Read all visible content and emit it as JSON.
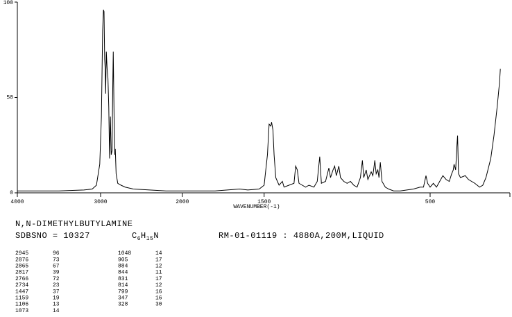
{
  "chart_data": {
    "type": "line",
    "x_label": "WAVENUMBER(-1)",
    "xlim": [
      4000,
      0
    ],
    "ylim": [
      0,
      100
    ],
    "xticks": [
      4000,
      3000,
      2000,
      1500,
      500
    ],
    "yticks": [
      0,
      50,
      100
    ],
    "color": "#000000",
    "x": [
      4000,
      3500,
      3200,
      3100,
      3050,
      3010,
      2990,
      2975,
      2965,
      2958,
      2950,
      2945,
      2938,
      2930,
      2920,
      2910,
      2900,
      2890,
      2880,
      2870,
      2860,
      2850,
      2845,
      2835,
      2826,
      2820,
      2810,
      2790,
      2750,
      2700,
      2600,
      2400,
      2200,
      2000,
      1800,
      1650,
      1600,
      1530,
      1500,
      1480,
      1470,
      1460,
      1455,
      1447,
      1440,
      1430,
      1420,
      1410,
      1390,
      1380,
      1320,
      1310,
      1300,
      1290,
      1270,
      1250,
      1230,
      1200,
      1180,
      1165,
      1155,
      1130,
      1110,
      1100,
      1085,
      1075,
      1065,
      1050,
      1040,
      1020,
      1000,
      980,
      960,
      940,
      920,
      908,
      900,
      885,
      875,
      855,
      845,
      833,
      825,
      815,
      808,
      800,
      790,
      770,
      750,
      720,
      680,
      600,
      560,
      540,
      525,
      515,
      500,
      480,
      460,
      440,
      420,
      400,
      380,
      365,
      355,
      350,
      340,
      332,
      328,
      322,
      310,
      280,
      260,
      220,
      190,
      170,
      150,
      120,
      100,
      80,
      65,
      60
    ],
    "values": [
      1,
      1,
      1.5,
      2,
      4,
      15,
      40,
      85,
      96,
      95,
      70,
      66,
      52,
      74,
      65,
      60,
      45,
      18,
      40,
      20,
      22,
      60,
      74,
      40,
      20,
      23,
      10,
      5,
      4,
      3,
      2,
      1.5,
      1,
      1,
      1,
      2,
      1.5,
      2,
      4,
      20,
      36,
      35,
      37,
      33,
      20,
      8,
      6,
      4,
      6,
      3,
      5,
      14,
      12,
      5,
      4,
      3,
      4,
      3,
      6,
      19,
      5,
      6,
      13,
      8,
      12,
      14,
      9,
      14,
      8,
      6,
      5,
      6,
      4,
      3,
      8,
      17,
      8,
      12,
      7,
      11,
      9,
      17,
      10,
      12,
      8,
      16,
      6,
      3,
      2,
      1,
      1,
      2,
      3,
      3,
      9,
      5,
      3,
      5,
      3,
      6,
      9,
      7,
      6,
      10,
      12,
      15,
      12,
      25,
      30,
      10,
      8,
      9,
      7,
      5,
      3,
      4,
      8,
      18,
      30,
      45,
      58,
      65
    ]
  },
  "compound": "N,N-DIMETHYLBUTYLAMINE",
  "sdbs_no": "SDBSNO = 10327",
  "formula": [
    "C",
    "6",
    "H",
    "15",
    "N"
  ],
  "measurement": "RM-01-01119 : 4880A,200M,LIQUID",
  "peaks": [
    [
      2945,
      96
    ],
    [
      2876,
      73
    ],
    [
      2865,
      67
    ],
    [
      2817,
      39
    ],
    [
      2766,
      72
    ],
    [
      2734,
      23
    ],
    [
      1447,
      37
    ],
    [
      1159,
      19
    ],
    [
      1106,
      13
    ],
    [
      1073,
      14
    ],
    [
      1048,
      14
    ],
    [
      905,
      17
    ],
    [
      884,
      12
    ],
    [
      844,
      11
    ],
    [
      831,
      17
    ],
    [
      814,
      12
    ],
    [
      799,
      16
    ],
    [
      347,
      16
    ],
    [
      328,
      30
    ]
  ]
}
